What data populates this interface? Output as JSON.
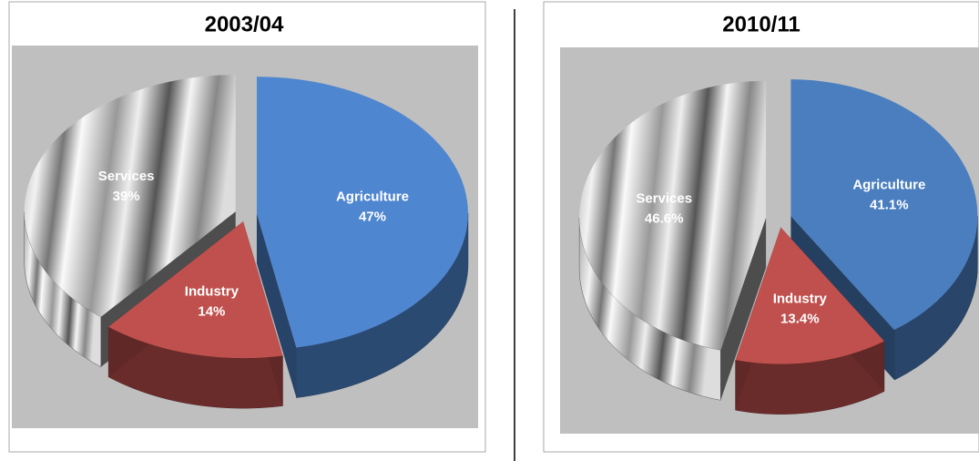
{
  "chart_data": [
    {
      "type": "pie",
      "title": "2003/04",
      "categories": [
        "Agriculture",
        "Industry",
        "Services"
      ],
      "values": [
        47,
        14,
        39
      ],
      "value_labels": [
        "47%",
        "14%",
        "39%"
      ],
      "colors": [
        "#4f86d0",
        "#c0504d",
        "#d9d9d9"
      ]
    },
    {
      "type": "pie",
      "title": "2010/11",
      "categories": [
        "Agriculture",
        "Industry",
        "Services"
      ],
      "values": [
        41.1,
        13.4,
        46.6
      ],
      "value_labels": [
        "41.1%",
        "13.4%",
        "46.6%"
      ],
      "colors": [
        "#4a7ebf",
        "#c0504d",
        "#d9d9d9"
      ]
    }
  ]
}
